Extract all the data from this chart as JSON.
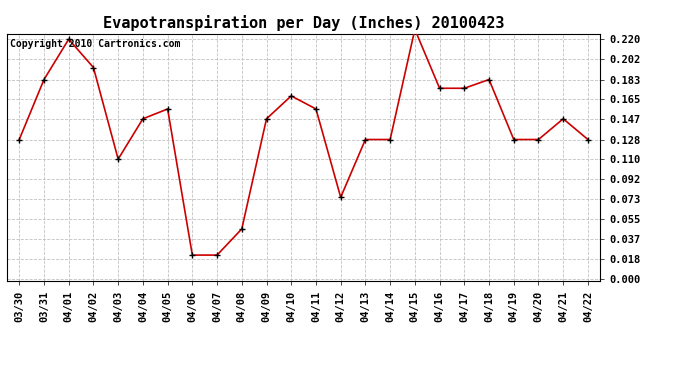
{
  "title": "Evapotranspiration per Day (Inches) 20100423",
  "copyright_text": "Copyright 2010 Cartronics.com",
  "x_labels": [
    "03/30",
    "03/31",
    "04/01",
    "04/02",
    "04/03",
    "04/04",
    "04/05",
    "04/06",
    "04/07",
    "04/08",
    "04/09",
    "04/10",
    "04/11",
    "04/12",
    "04/13",
    "04/14",
    "04/15",
    "04/16",
    "04/17",
    "04/18",
    "04/19",
    "04/20",
    "04/21",
    "04/22"
  ],
  "y_values": [
    0.128,
    0.183,
    0.22,
    0.194,
    0.11,
    0.147,
    0.156,
    0.022,
    0.022,
    0.046,
    0.147,
    0.168,
    0.156,
    0.075,
    0.128,
    0.128,
    0.229,
    0.175,
    0.175,
    0.183,
    0.128,
    0.128,
    0.147,
    0.128
  ],
  "y_ticks": [
    0.0,
    0.018,
    0.037,
    0.055,
    0.073,
    0.092,
    0.11,
    0.128,
    0.147,
    0.165,
    0.183,
    0.202,
    0.22
  ],
  "y_min": 0.0,
  "y_max": 0.22,
  "line_color": "#cc0000",
  "marker_color": "#000000",
  "bg_color": "#ffffff",
  "grid_color": "#bbbbbb",
  "title_fontsize": 11,
  "tick_fontsize": 7.5,
  "copyright_fontsize": 7
}
